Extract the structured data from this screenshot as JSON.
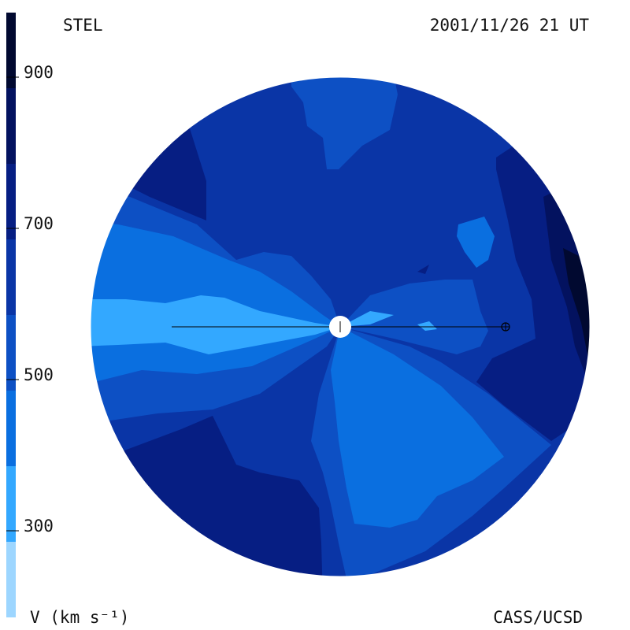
{
  "header": {
    "observatory": "STEL",
    "timestamp": "2001/11/26 21 UT"
  },
  "footer": {
    "credit": "CASS/UCSD",
    "unit_label": "V (km s⁻¹)"
  },
  "chart_data": {
    "type": "heatmap",
    "title": "",
    "quantity": "V",
    "units": "km s⁻¹",
    "colorbar": {
      "ticks": [
        300,
        500,
        700,
        900
      ],
      "range": [
        200,
        1000
      ],
      "levels": [
        {
          "min": 200,
          "max": 300,
          "color": "#9dd6ff"
        },
        {
          "min": 300,
          "max": 400,
          "color": "#33a8ff"
        },
        {
          "min": 400,
          "max": 500,
          "color": "#0a6fe0"
        },
        {
          "min": 500,
          "max": 600,
          "color": "#0d50c4"
        },
        {
          "min": 600,
          "max": 700,
          "color": "#0a35a6"
        },
        {
          "min": 700,
          "max": 800,
          "color": "#061e83"
        },
        {
          "min": 800,
          "max": 900,
          "color": "#03125f"
        },
        {
          "min": 900,
          "max": 1000,
          "color": "#010930"
        }
      ]
    },
    "markers": [
      "sun-center",
      "earth-position"
    ]
  },
  "colors": {
    "background": "#ffffff",
    "line": "#000000"
  }
}
